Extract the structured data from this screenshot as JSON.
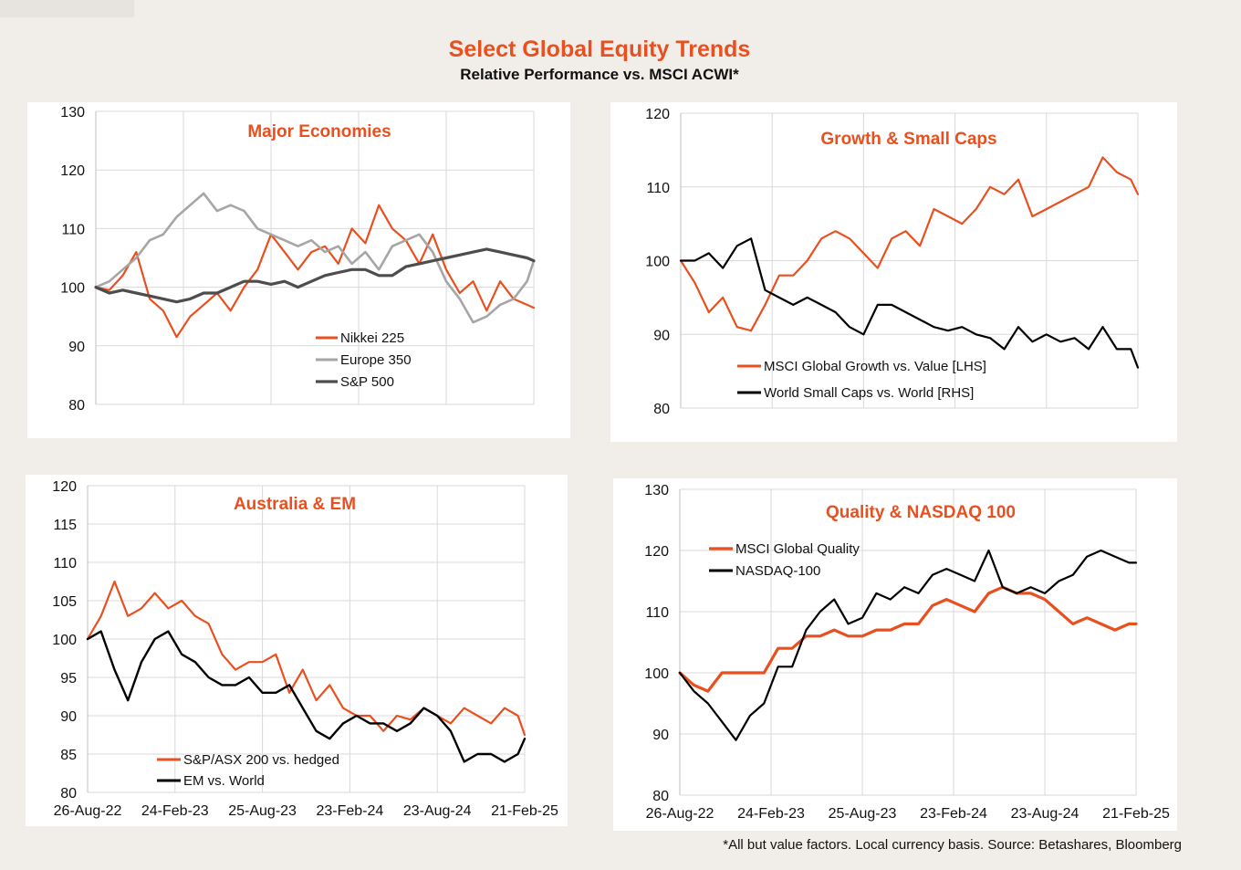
{
  "header": {
    "title": "Select Global Equity Trends",
    "subtitle": "Relative Performance vs. MSCI ACWI*"
  },
  "footnote": "*All but value factors. Local currency basis.  Source: Betashares, Bloomberg",
  "colors": {
    "orange": "#e8501f",
    "grey": "#a6a6a6",
    "darkgrey": "#4d4d4d",
    "black": "#000000"
  },
  "chart_data": [
    {
      "type": "line",
      "title": "Major Economies",
      "ylim": [
        80,
        130
      ],
      "yticks": [
        "130",
        "120",
        "110",
        "100",
        "90",
        "80"
      ],
      "xticks": [],
      "x_start": "2022-08-26",
      "x_end": "2025-02-21",
      "grid": true,
      "legend": "lower-right",
      "series": [
        {
          "name": "Nikkei 225",
          "color": "#e8501f",
          "width": 2.2,
          "x": [
            "2022-08-26",
            "2022-09-23",
            "2022-10-21",
            "2022-11-18",
            "2022-12-16",
            "2023-01-13",
            "2023-02-10",
            "2023-03-10",
            "2023-04-07",
            "2023-05-05",
            "2023-06-02",
            "2023-06-30",
            "2023-07-28",
            "2023-08-25",
            "2023-09-22",
            "2023-10-20",
            "2023-11-17",
            "2023-12-15",
            "2024-01-12",
            "2024-02-09",
            "2024-03-08",
            "2024-04-05",
            "2024-05-03",
            "2024-05-31",
            "2024-06-28",
            "2024-07-26",
            "2024-08-23",
            "2024-09-20",
            "2024-10-18",
            "2024-11-15",
            "2024-12-13",
            "2025-01-10",
            "2025-02-07",
            "2025-02-21"
          ],
          "y": [
            100,
            99.5,
            102,
            106,
            98,
            96,
            91.5,
            95,
            97,
            99,
            96,
            100,
            103,
            109,
            106,
            103,
            106,
            107,
            104,
            110,
            107.5,
            114,
            110,
            108,
            104,
            109,
            103,
            99,
            101,
            96,
            101,
            98,
            97,
            96.5
          ]
        },
        {
          "name": "Europe 350",
          "color": "#a6a6a6",
          "width": 2.6,
          "x": [
            "2022-08-26",
            "2022-09-23",
            "2022-10-21",
            "2022-11-18",
            "2022-12-16",
            "2023-01-13",
            "2023-02-10",
            "2023-03-10",
            "2023-04-07",
            "2023-05-05",
            "2023-06-02",
            "2023-06-30",
            "2023-07-28",
            "2023-08-25",
            "2023-09-22",
            "2023-10-20",
            "2023-11-17",
            "2023-12-15",
            "2024-01-12",
            "2024-02-09",
            "2024-03-08",
            "2024-04-05",
            "2024-05-03",
            "2024-05-31",
            "2024-06-28",
            "2024-07-26",
            "2024-08-23",
            "2024-09-20",
            "2024-10-18",
            "2024-11-15",
            "2024-12-13",
            "2025-01-10",
            "2025-02-07",
            "2025-02-21"
          ],
          "y": [
            100,
            101,
            103,
            105,
            108,
            109,
            112,
            114,
            116,
            113,
            114,
            113,
            110,
            109,
            108,
            107,
            108,
            106,
            107,
            104,
            106,
            103,
            107,
            108,
            109,
            106,
            101,
            98,
            94,
            95,
            97,
            98,
            101,
            104.5
          ]
        },
        {
          "name": "S&P 500",
          "color": "#4d4d4d",
          "width": 3.2,
          "x": [
            "2022-08-26",
            "2022-09-23",
            "2022-10-21",
            "2022-11-18",
            "2022-12-16",
            "2023-01-13",
            "2023-02-10",
            "2023-03-10",
            "2023-04-07",
            "2023-05-05",
            "2023-06-02",
            "2023-06-30",
            "2023-07-28",
            "2023-08-25",
            "2023-09-22",
            "2023-10-20",
            "2023-11-17",
            "2023-12-15",
            "2024-01-12",
            "2024-02-09",
            "2024-03-08",
            "2024-04-05",
            "2024-05-03",
            "2024-05-31",
            "2024-06-28",
            "2024-07-26",
            "2024-08-23",
            "2024-09-20",
            "2024-10-18",
            "2024-11-15",
            "2024-12-13",
            "2025-01-10",
            "2025-02-07",
            "2025-02-21"
          ],
          "y": [
            100,
            99,
            99.5,
            99,
            98.5,
            98,
            97.5,
            98,
            99,
            99,
            100,
            101,
            101,
            100.5,
            101,
            100,
            101,
            102,
            102.5,
            103,
            103,
            102,
            102,
            103.5,
            104,
            104.5,
            105,
            105.5,
            106,
            106.5,
            106,
            105.5,
            105,
            104.5
          ]
        }
      ]
    },
    {
      "type": "line",
      "title": "Growth & Small Caps",
      "ylim": [
        80,
        120
      ],
      "yticks": [
        "120",
        "110",
        "100",
        "90",
        "80"
      ],
      "xticks": [],
      "x_start": "2022-08-26",
      "x_end": "2025-02-21",
      "grid": true,
      "legend": "bottom",
      "series": [
        {
          "name": "MSCI Global Growth vs. Value [LHS]",
          "color": "#e8501f",
          "width": 2.2,
          "x": [
            "2022-08-26",
            "2022-09-23",
            "2022-10-21",
            "2022-11-18",
            "2022-12-16",
            "2023-01-13",
            "2023-02-10",
            "2023-03-10",
            "2023-04-07",
            "2023-05-05",
            "2023-06-02",
            "2023-06-30",
            "2023-07-28",
            "2023-08-25",
            "2023-09-22",
            "2023-10-20",
            "2023-11-17",
            "2023-12-15",
            "2024-01-12",
            "2024-02-09",
            "2024-03-08",
            "2024-04-05",
            "2024-05-03",
            "2024-05-31",
            "2024-06-28",
            "2024-07-26",
            "2024-08-23",
            "2024-09-20",
            "2024-10-18",
            "2024-11-15",
            "2024-12-13",
            "2025-01-10",
            "2025-02-07",
            "2025-02-21"
          ],
          "y": [
            100,
            97,
            93,
            95,
            91,
            90.5,
            94,
            98,
            98,
            100,
            103,
            104,
            103,
            101,
            99,
            103,
            104,
            102,
            107,
            106,
            105,
            107,
            110,
            109,
            111,
            106,
            107,
            108,
            109,
            110,
            114,
            112,
            111,
            109
          ]
        },
        {
          "name": "World Small Caps vs. World [RHS]",
          "color": "#000000",
          "width": 2.2,
          "x": [
            "2022-08-26",
            "2022-09-23",
            "2022-10-21",
            "2022-11-18",
            "2022-12-16",
            "2023-01-13",
            "2023-02-10",
            "2023-03-10",
            "2023-04-07",
            "2023-05-05",
            "2023-06-02",
            "2023-06-30",
            "2023-07-28",
            "2023-08-25",
            "2023-09-22",
            "2023-10-20",
            "2023-11-17",
            "2023-12-15",
            "2024-01-12",
            "2024-02-09",
            "2024-03-08",
            "2024-04-05",
            "2024-05-03",
            "2024-05-31",
            "2024-06-28",
            "2024-07-26",
            "2024-08-23",
            "2024-09-20",
            "2024-10-18",
            "2024-11-15",
            "2024-12-13",
            "2025-01-10",
            "2025-02-07",
            "2025-02-21"
          ],
          "y": [
            100,
            100,
            101,
            99,
            102,
            103,
            96,
            95,
            94,
            95,
            94,
            93,
            91,
            90,
            94,
            94,
            93,
            92,
            91,
            90.5,
            91,
            90,
            89.5,
            88,
            91,
            89,
            90,
            89,
            89.5,
            88,
            91,
            88,
            88,
            85.5
          ]
        }
      ]
    },
    {
      "type": "line",
      "title": "Australia & EM",
      "ylim": [
        80,
        120
      ],
      "yticks": [
        "120",
        "115",
        "110",
        "105",
        "100",
        "95",
        "90",
        "85",
        "80"
      ],
      "xticks": [
        "26-Aug-22",
        "24-Feb-23",
        "25-Aug-23",
        "23-Feb-24",
        "23-Aug-24",
        "21-Feb-25"
      ],
      "x_start": "2022-08-26",
      "x_end": "2025-02-21",
      "grid": true,
      "legend": "bottom-left",
      "series": [
        {
          "name": "S&P/ASX 200 vs. hedged",
          "color": "#e8501f",
          "width": 2.2,
          "x": [
            "2022-08-26",
            "2022-09-23",
            "2022-10-21",
            "2022-11-18",
            "2022-12-16",
            "2023-01-13",
            "2023-02-10",
            "2023-03-10",
            "2023-04-07",
            "2023-05-05",
            "2023-06-02",
            "2023-06-30",
            "2023-07-28",
            "2023-08-25",
            "2023-09-22",
            "2023-10-20",
            "2023-11-17",
            "2023-12-15",
            "2024-01-12",
            "2024-02-09",
            "2024-03-08",
            "2024-04-05",
            "2024-05-03",
            "2024-05-31",
            "2024-06-28",
            "2024-07-26",
            "2024-08-23",
            "2024-09-20",
            "2024-10-18",
            "2024-11-15",
            "2024-12-13",
            "2025-01-10",
            "2025-02-07",
            "2025-02-21"
          ],
          "y": [
            100,
            103,
            107.5,
            103,
            104,
            106,
            104,
            105,
            103,
            102,
            98,
            96,
            97,
            97,
            98,
            93,
            96,
            92,
            94,
            91,
            90,
            90,
            88,
            90,
            89.5,
            91,
            90,
            89,
            91,
            90,
            89,
            91,
            90,
            87.5
          ]
        },
        {
          "name": "EM vs. World",
          "color": "#000000",
          "width": 2.4,
          "x": [
            "2022-08-26",
            "2022-09-23",
            "2022-10-21",
            "2022-11-18",
            "2022-12-16",
            "2023-01-13",
            "2023-02-10",
            "2023-03-10",
            "2023-04-07",
            "2023-05-05",
            "2023-06-02",
            "2023-06-30",
            "2023-07-28",
            "2023-08-25",
            "2023-09-22",
            "2023-10-20",
            "2023-11-17",
            "2023-12-15",
            "2024-01-12",
            "2024-02-09",
            "2024-03-08",
            "2024-04-05",
            "2024-05-03",
            "2024-05-31",
            "2024-06-28",
            "2024-07-26",
            "2024-08-23",
            "2024-09-20",
            "2024-10-18",
            "2024-11-15",
            "2024-12-13",
            "2025-01-10",
            "2025-02-07",
            "2025-02-21"
          ],
          "y": [
            100,
            101,
            96,
            92,
            97,
            100,
            101,
            98,
            97,
            95,
            94,
            94,
            95,
            93,
            93,
            94,
            91,
            88,
            87,
            89,
            90,
            89,
            89,
            88,
            89,
            91,
            90,
            88,
            84,
            85,
            85,
            84,
            85,
            87
          ]
        }
      ]
    },
    {
      "type": "line",
      "title": "Quality & NASDAQ 100",
      "ylim": [
        80,
        130
      ],
      "yticks": [
        "130",
        "120",
        "110",
        "100",
        "90",
        "80"
      ],
      "xticks": [
        "26-Aug-22",
        "24-Feb-23",
        "25-Aug-23",
        "23-Feb-24",
        "23-Aug-24",
        "21-Feb-25"
      ],
      "x_start": "2022-08-26",
      "x_end": "2025-02-21",
      "grid": true,
      "legend": "top-left",
      "series": [
        {
          "name": "MSCI Global Quality",
          "color": "#e8501f",
          "width": 3.2,
          "x": [
            "2022-08-26",
            "2022-09-23",
            "2022-10-21",
            "2022-11-18",
            "2022-12-16",
            "2023-01-13",
            "2023-02-10",
            "2023-03-10",
            "2023-04-07",
            "2023-05-05",
            "2023-06-02",
            "2023-06-30",
            "2023-07-28",
            "2023-08-25",
            "2023-09-22",
            "2023-10-20",
            "2023-11-17",
            "2023-12-15",
            "2024-01-12",
            "2024-02-09",
            "2024-03-08",
            "2024-04-05",
            "2024-05-03",
            "2024-05-31",
            "2024-06-28",
            "2024-07-26",
            "2024-08-23",
            "2024-09-20",
            "2024-10-18",
            "2024-11-15",
            "2024-12-13",
            "2025-01-10",
            "2025-02-07",
            "2025-02-21"
          ],
          "y": [
            100,
            98,
            97,
            100,
            100,
            100,
            100,
            104,
            104,
            106,
            106,
            107,
            106,
            106,
            107,
            107,
            108,
            108,
            111,
            112,
            111,
            110,
            113,
            114,
            113,
            113,
            112,
            110,
            108,
            109,
            108,
            107,
            108,
            108
          ]
        },
        {
          "name": "NASDAQ-100",
          "color": "#000000",
          "width": 2.2,
          "x": [
            "2022-08-26",
            "2022-09-23",
            "2022-10-21",
            "2022-11-18",
            "2022-12-16",
            "2023-01-13",
            "2023-02-10",
            "2023-03-10",
            "2023-04-07",
            "2023-05-05",
            "2023-06-02",
            "2023-06-30",
            "2023-07-28",
            "2023-08-25",
            "2023-09-22",
            "2023-10-20",
            "2023-11-17",
            "2023-12-15",
            "2024-01-12",
            "2024-02-09",
            "2024-03-08",
            "2024-04-05",
            "2024-05-03",
            "2024-05-31",
            "2024-06-28",
            "2024-07-26",
            "2024-08-23",
            "2024-09-20",
            "2024-10-18",
            "2024-11-15",
            "2024-12-13",
            "2025-01-10",
            "2025-02-07",
            "2025-02-21"
          ],
          "y": [
            100,
            97,
            95,
            92,
            89,
            93,
            95,
            101,
            101,
            107,
            110,
            112,
            108,
            109,
            113,
            112,
            114,
            113,
            116,
            117,
            116,
            115,
            120,
            114,
            113,
            114,
            113,
            115,
            116,
            119,
            120,
            119,
            118,
            118
          ]
        }
      ]
    }
  ]
}
